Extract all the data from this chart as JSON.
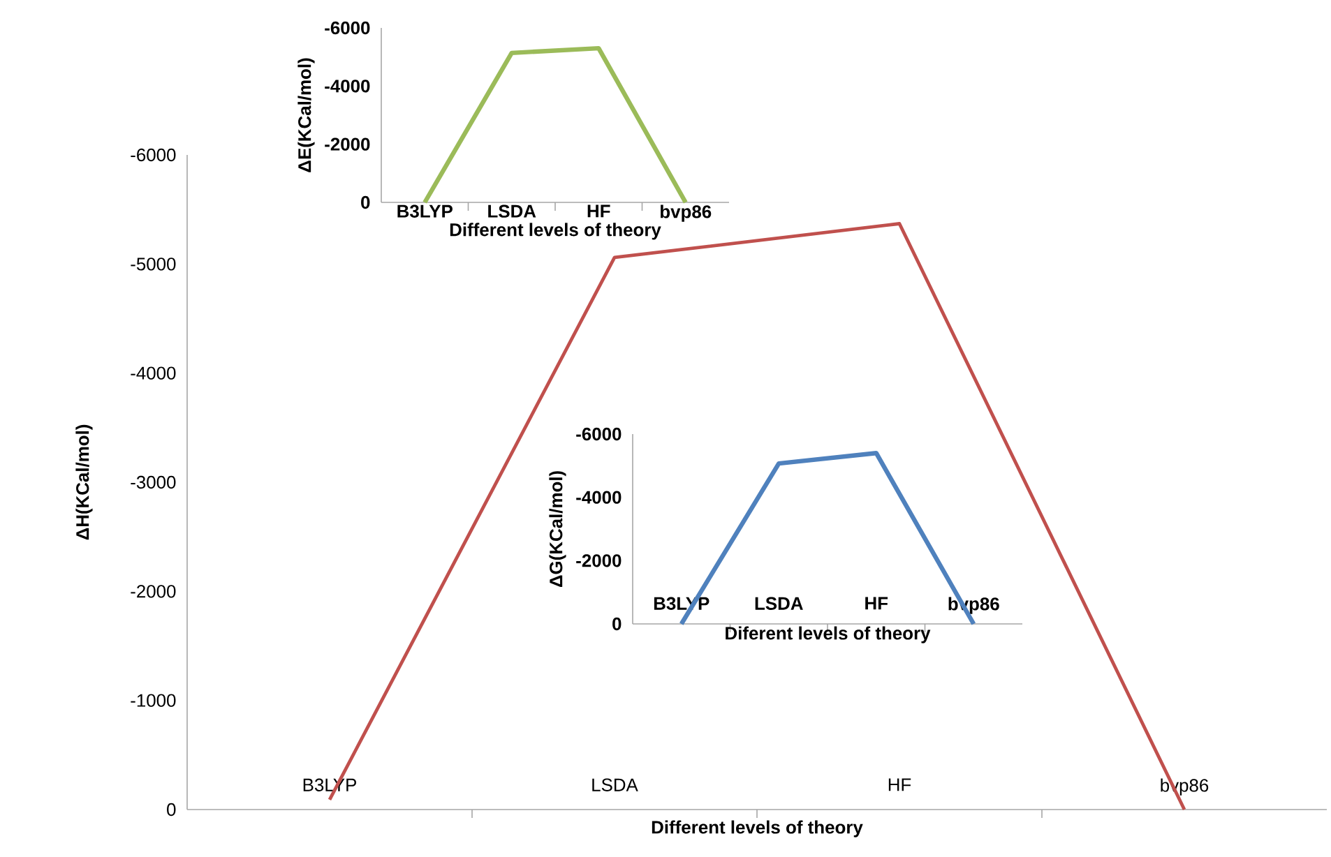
{
  "chart_data": [
    {
      "type": "line",
      "categories": [
        "B3LYP",
        "LSDA",
        "HF",
        "bvp86"
      ],
      "xlabel": "Different levels of theory",
      "ylabel": "ΔH(KCal/mol)",
      "ylim": [
        0,
        -6000
      ],
      "yticks": [
        0,
        -1000,
        -2000,
        -3000,
        -4000,
        -5000,
        -6000
      ],
      "series": [
        {
          "color": "#c0504d",
          "values": [
            -90,
            -5060,
            -5370,
            0
          ]
        }
      ]
    },
    {
      "type": "line",
      "categories": [
        "B3LYP",
        "LSDA",
        "HF",
        "bvp86"
      ],
      "xlabel": "Different levels of theory",
      "ylabel": "ΔE(KCal/mol)",
      "ylim": [
        0,
        -6000
      ],
      "yticks": [
        0,
        -2000,
        -4000,
        -6000
      ],
      "series": [
        {
          "color": "#9bbb59",
          "values": [
            0,
            -5140,
            -5300,
            0
          ]
        }
      ]
    },
    {
      "type": "line",
      "categories": [
        "B3LYP",
        "LSDA",
        "HF",
        "bvp86"
      ],
      "xlabel": "Diferent levels of theory",
      "ylabel": "ΔG(KCal/mol)",
      "ylim": [
        0,
        -6000
      ],
      "yticks": [
        0,
        -2000,
        -4000,
        -6000
      ],
      "series": [
        {
          "color": "#4f81bd",
          "values": [
            0,
            -5070,
            -5400,
            0
          ]
        }
      ]
    }
  ]
}
